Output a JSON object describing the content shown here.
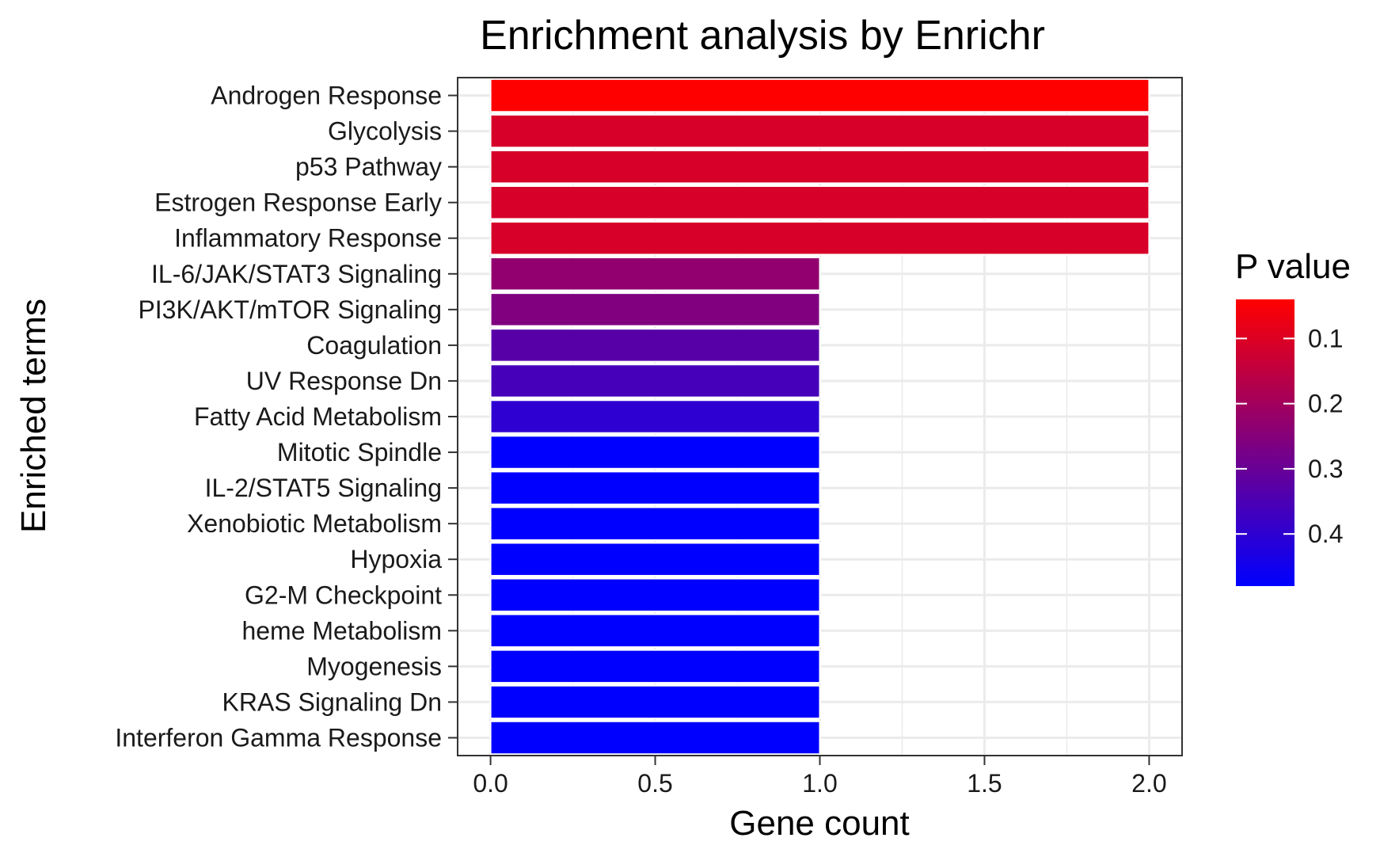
{
  "chart_data": {
    "type": "bar",
    "orientation": "horizontal",
    "title": "Enrichment analysis by Enrichr",
    "xlabel": "Gene count",
    "ylabel": "Enriched terms",
    "xlim": [
      -0.1,
      2.1
    ],
    "xticks": [
      "0.0",
      "0.5",
      "1.0",
      "1.5",
      "2.0"
    ],
    "grid": true,
    "legend_position": "right",
    "categories": [
      "Androgen Response",
      "Glycolysis",
      "p53 Pathway",
      "Estrogen Response Early",
      "Inflammatory Response",
      "IL-6/JAK/STAT3 Signaling",
      "PI3K/AKT/mTOR  Signaling",
      "Coagulation",
      "UV Response Dn",
      "Fatty Acid Metabolism",
      "Mitotic Spindle",
      "IL-2/STAT5 Signaling",
      "Xenobiotic Metabolism",
      "Hypoxia",
      "G2-M Checkpoint",
      "heme Metabolism",
      "Myogenesis",
      "KRAS Signaling Dn",
      "Interferon Gamma Response"
    ],
    "values": [
      2,
      2,
      2,
      2,
      2,
      1,
      1,
      1,
      1,
      1,
      1,
      1,
      1,
      1,
      1,
      1,
      1,
      1,
      1
    ],
    "p_values": [
      0.04,
      0.11,
      0.11,
      0.11,
      0.11,
      0.23,
      0.26,
      0.33,
      0.36,
      0.4,
      0.48,
      0.48,
      0.48,
      0.48,
      0.48,
      0.48,
      0.48,
      0.48,
      0.48
    ],
    "colorbar": {
      "title": "P value",
      "range": [
        0.04,
        0.48
      ],
      "low_color": "#ff0000",
      "high_color": "#0000ff",
      "ticks": [
        "0.1",
        "0.2",
        "0.3",
        "0.4"
      ]
    }
  }
}
